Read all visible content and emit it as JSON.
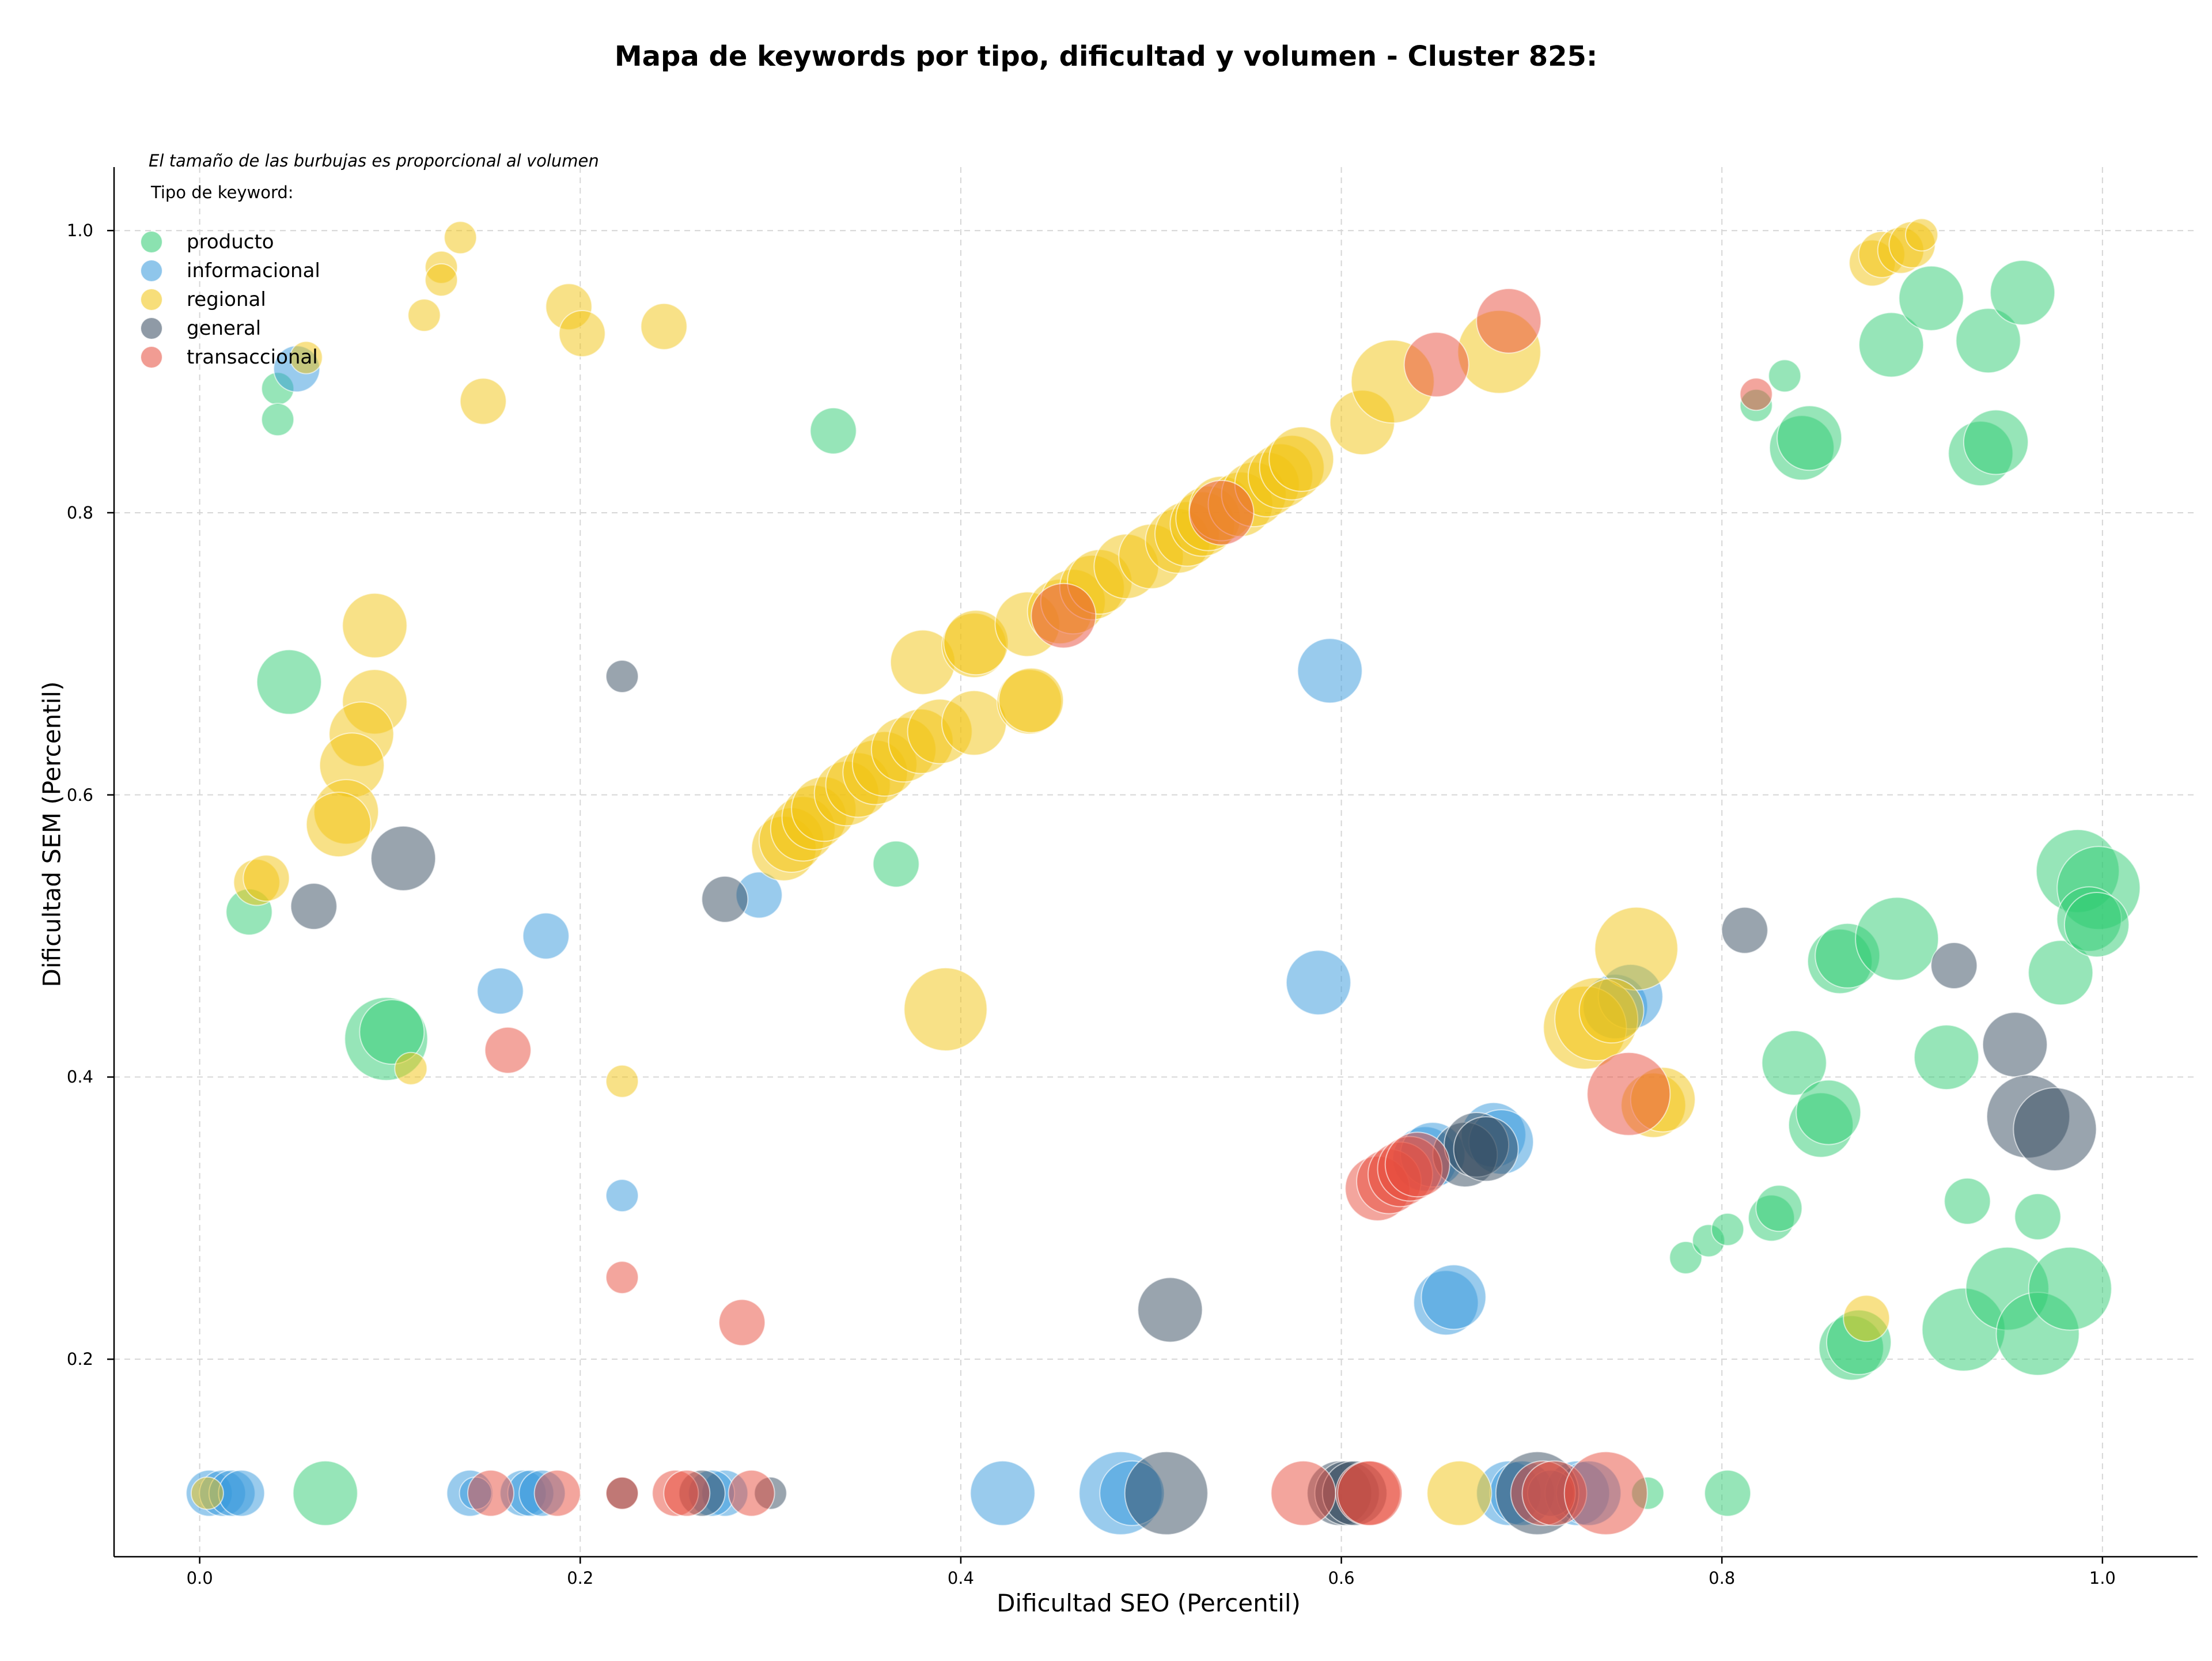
{
  "chart_data": {
    "type": "scatter",
    "title": "Mapa de keywords por tipo, dificultad y volumen - Cluster 825:",
    "xlabel": "Dificultad SEO (Percentil)",
    "ylabel": "Dificultad SEM (Percentil)",
    "note": "El tamaño de las burbujas es proporcional al volumen",
    "legend_title": "Tipo de keyword:",
    "legend_position": "top-left",
    "xlim": [
      -0.045,
      1.05
    ],
    "ylim": [
      0.06,
      1.045
    ],
    "xticks": [
      "0.0",
      "0.2",
      "0.4",
      "0.6",
      "0.8",
      "1.0"
    ],
    "yticks": [
      "0.2",
      "0.4",
      "0.6",
      "0.8",
      "1.0"
    ],
    "grid": true,
    "series": [
      {
        "name": "producto",
        "color": "#2ecc71",
        "points": [
          [
            0.041,
            0.888,
            1
          ],
          [
            0.041,
            0.866,
            1
          ],
          [
            0.026,
            0.517,
            2
          ],
          [
            0.047,
            0.68,
            3
          ],
          [
            0.098,
            0.427,
            4
          ],
          [
            0.101,
            0.432,
            3
          ],
          [
            0.066,
            0.105,
            3
          ],
          [
            0.333,
            0.858,
            2
          ],
          [
            0.366,
            0.551,
            2
          ],
          [
            0.761,
            0.105,
            1
          ],
          [
            0.803,
            0.105,
            2
          ],
          [
            0.833,
            0.897,
            1
          ],
          [
            0.818,
            0.876,
            1
          ],
          [
            0.842,
            0.846,
            3
          ],
          [
            0.846,
            0.853,
            3
          ],
          [
            0.889,
            0.919,
            3
          ],
          [
            0.91,
            0.952,
            3
          ],
          [
            0.94,
            0.922,
            3
          ],
          [
            0.958,
            0.956,
            3
          ],
          [
            0.936,
            0.842,
            3
          ],
          [
            0.944,
            0.85,
            3
          ],
          [
            0.862,
            0.482,
            3
          ],
          [
            0.866,
            0.486,
            3
          ],
          [
            0.892,
            0.498,
            4
          ],
          [
            0.838,
            0.41,
            3
          ],
          [
            0.852,
            0.366,
            3
          ],
          [
            0.856,
            0.375,
            3
          ],
          [
            0.918,
            0.414,
            3
          ],
          [
            0.978,
            0.474,
            3
          ],
          [
            0.987,
            0.546,
            4
          ],
          [
            0.998,
            0.534,
            4
          ],
          [
            0.993,
            0.512,
            3
          ],
          [
            0.997,
            0.508,
            3
          ],
          [
            0.929,
            0.312,
            2
          ],
          [
            0.966,
            0.301,
            2
          ],
          [
            0.781,
            0.272,
            1
          ],
          [
            0.793,
            0.284,
            1
          ],
          [
            0.803,
            0.292,
            1
          ],
          [
            0.826,
            0.3,
            2
          ],
          [
            0.83,
            0.307,
            2
          ],
          [
            0.868,
            0.208,
            3
          ],
          [
            0.872,
            0.212,
            3
          ],
          [
            0.927,
            0.221,
            4
          ],
          [
            0.95,
            0.25,
            4
          ],
          [
            0.966,
            0.218,
            4
          ],
          [
            0.983,
            0.25,
            4
          ]
        ]
      },
      {
        "name": "informacional",
        "color": "#3498db",
        "points": [
          [
            0.051,
            0.902,
            2
          ],
          [
            0.005,
            0.105,
            2
          ],
          [
            0.012,
            0.105,
            2
          ],
          [
            0.017,
            0.105,
            2
          ],
          [
            0.022,
            0.105,
            2
          ],
          [
            0.142,
            0.105,
            2
          ],
          [
            0.145,
            0.105,
            1
          ],
          [
            0.17,
            0.105,
            2
          ],
          [
            0.174,
            0.105,
            2
          ],
          [
            0.18,
            0.105,
            2
          ],
          [
            0.276,
            0.105,
            2
          ],
          [
            0.269,
            0.105,
            2
          ],
          [
            0.158,
            0.461,
            2
          ],
          [
            0.182,
            0.5,
            2
          ],
          [
            0.222,
            0.316,
            1
          ],
          [
            0.294,
            0.529,
            2
          ],
          [
            0.594,
            0.688,
            3
          ],
          [
            0.588,
            0.467,
            3
          ],
          [
            0.422,
            0.105,
            3
          ],
          [
            0.484,
            0.105,
            4
          ],
          [
            0.49,
            0.105,
            3
          ],
          [
            0.655,
            0.24,
            3
          ],
          [
            0.659,
            0.244,
            3
          ],
          [
            0.644,
            0.342,
            3
          ],
          [
            0.648,
            0.345,
            3
          ],
          [
            0.68,
            0.359,
            3
          ],
          [
            0.684,
            0.354,
            3
          ],
          [
            0.744,
            0.45,
            3
          ],
          [
            0.752,
            0.457,
            3
          ],
          [
            0.688,
            0.105,
            3
          ],
          [
            0.695,
            0.105,
            3
          ],
          [
            0.724,
            0.105,
            3
          ],
          [
            0.73,
            0.105,
            3
          ],
          [
            0.71,
            0.105,
            2
          ]
        ]
      },
      {
        "name": "regional",
        "color": "#f1c40f",
        "points": [
          [
            0.137,
            0.995,
            1
          ],
          [
            0.127,
            0.974,
            1
          ],
          [
            0.127,
            0.965,
            1
          ],
          [
            0.118,
            0.94,
            1
          ],
          [
            0.194,
            0.946,
            2
          ],
          [
            0.201,
            0.927,
            2
          ],
          [
            0.244,
            0.932,
            2
          ],
          [
            0.149,
            0.879,
            2
          ],
          [
            0.056,
            0.91,
            1
          ],
          [
            0.092,
            0.72,
            3
          ],
          [
            0.092,
            0.666,
            3
          ],
          [
            0.085,
            0.643,
            3
          ],
          [
            0.08,
            0.621,
            3
          ],
          [
            0.077,
            0.588,
            3
          ],
          [
            0.073,
            0.579,
            3
          ],
          [
            0.03,
            0.538,
            2
          ],
          [
            0.035,
            0.541,
            2
          ],
          [
            0.111,
            0.406,
            1
          ],
          [
            0.222,
            0.397,
            1
          ],
          [
            0.004,
            0.105,
            1
          ],
          [
            0.392,
            0.448,
            4
          ],
          [
            0.662,
            0.105,
            3
          ],
          [
            0.876,
            0.229,
            2
          ],
          [
            0.755,
            0.491,
            4
          ],
          [
            0.764,
            0.38,
            3
          ],
          [
            0.769,
            0.384,
            3
          ],
          [
            0.728,
            0.435,
            4
          ],
          [
            0.734,
            0.441,
            4
          ],
          [
            0.742,
            0.447,
            3
          ],
          [
            0.879,
            0.977,
            2
          ],
          [
            0.884,
            0.983,
            2
          ],
          [
            0.894,
            0.986,
            2
          ],
          [
            0.9,
            0.99,
            2
          ],
          [
            0.905,
            0.997,
            1
          ],
          [
            0.611,
            0.864,
            3
          ],
          [
            0.627,
            0.893,
            4
          ],
          [
            0.683,
            0.914,
            4
          ],
          [
            0.307,
            0.562,
            3
          ],
          [
            0.311,
            0.568,
            3
          ],
          [
            0.317,
            0.576,
            3
          ],
          [
            0.323,
            0.584,
            3
          ],
          [
            0.328,
            0.59,
            3
          ],
          [
            0.34,
            0.601,
            3
          ],
          [
            0.346,
            0.607,
            3
          ],
          [
            0.355,
            0.616,
            3
          ],
          [
            0.36,
            0.622,
            3
          ],
          [
            0.37,
            0.632,
            3
          ],
          [
            0.379,
            0.638,
            3
          ],
          [
            0.389,
            0.645,
            3
          ],
          [
            0.407,
            0.651,
            3
          ],
          [
            0.38,
            0.694,
            3
          ],
          [
            0.407,
            0.706,
            3
          ],
          [
            0.408,
            0.708,
            3
          ],
          [
            0.436,
            0.666,
            3
          ],
          [
            0.437,
            0.667,
            3
          ],
          [
            0.435,
            0.721,
            3
          ],
          [
            0.452,
            0.73,
            3
          ],
          [
            0.459,
            0.737,
            3
          ],
          [
            0.469,
            0.747,
            3
          ],
          [
            0.473,
            0.751,
            3
          ],
          [
            0.487,
            0.762,
            3
          ],
          [
            0.5,
            0.769,
            3
          ],
          [
            0.514,
            0.78,
            3
          ],
          [
            0.519,
            0.785,
            3
          ],
          [
            0.527,
            0.792,
            3
          ],
          [
            0.53,
            0.796,
            3
          ],
          [
            0.537,
            0.803,
            3
          ],
          [
            0.547,
            0.806,
            3
          ],
          [
            0.554,
            0.813,
            3
          ],
          [
            0.561,
            0.82,
            3
          ],
          [
            0.568,
            0.826,
            3
          ],
          [
            0.574,
            0.832,
            3
          ],
          [
            0.579,
            0.838,
            3
          ]
        ]
      },
      {
        "name": "general",
        "color": "#34495e",
        "points": [
          [
            0.107,
            0.555,
            3
          ],
          [
            0.06,
            0.521,
            2
          ],
          [
            0.222,
            0.684,
            1
          ],
          [
            0.276,
            0.526,
            2
          ],
          [
            0.51,
            0.235,
            3
          ],
          [
            0.222,
            0.105,
            1
          ],
          [
            0.264,
            0.105,
            2
          ],
          [
            0.3,
            0.105,
            1
          ],
          [
            0.508,
            0.105,
            4
          ],
          [
            0.599,
            0.105,
            3
          ],
          [
            0.603,
            0.105,
            3
          ],
          [
            0.607,
            0.105,
            3
          ],
          [
            0.665,
            0.345,
            3
          ],
          [
            0.671,
            0.352,
            3
          ],
          [
            0.676,
            0.349,
            3
          ],
          [
            0.812,
            0.504,
            2
          ],
          [
            0.922,
            0.479,
            2
          ],
          [
            0.954,
            0.423,
            3
          ],
          [
            0.961,
            0.372,
            4
          ],
          [
            0.975,
            0.363,
            4
          ],
          [
            0.703,
            0.105,
            4
          ]
        ]
      },
      {
        "name": "transaccional",
        "color": "#e74c3c",
        "points": [
          [
            0.153,
            0.105,
            2
          ],
          [
            0.188,
            0.105,
            2
          ],
          [
            0.162,
            0.419,
            2
          ],
          [
            0.222,
            0.258,
            1
          ],
          [
            0.222,
            0.105,
            1
          ],
          [
            0.25,
            0.105,
            2
          ],
          [
            0.256,
            0.105,
            2
          ],
          [
            0.29,
            0.105,
            2
          ],
          [
            0.285,
            0.226,
            2
          ],
          [
            0.537,
            0.8,
            3
          ],
          [
            0.454,
            0.727,
            3
          ],
          [
            0.65,
            0.905,
            3
          ],
          [
            0.688,
            0.936,
            3
          ],
          [
            0.619,
            0.321,
            3
          ],
          [
            0.625,
            0.326,
            3
          ],
          [
            0.631,
            0.331,
            3
          ],
          [
            0.636,
            0.335,
            3
          ],
          [
            0.64,
            0.338,
            3
          ],
          [
            0.58,
            0.105,
            3
          ],
          [
            0.614,
            0.105,
            3
          ],
          [
            0.615,
            0.105,
            3
          ],
          [
            0.751,
            0.388,
            4
          ],
          [
            0.818,
            0.884,
            1
          ],
          [
            0.706,
            0.105,
            3
          ],
          [
            0.712,
            0.105,
            3
          ],
          [
            0.739,
            0.105,
            4
          ]
        ]
      }
    ]
  }
}
